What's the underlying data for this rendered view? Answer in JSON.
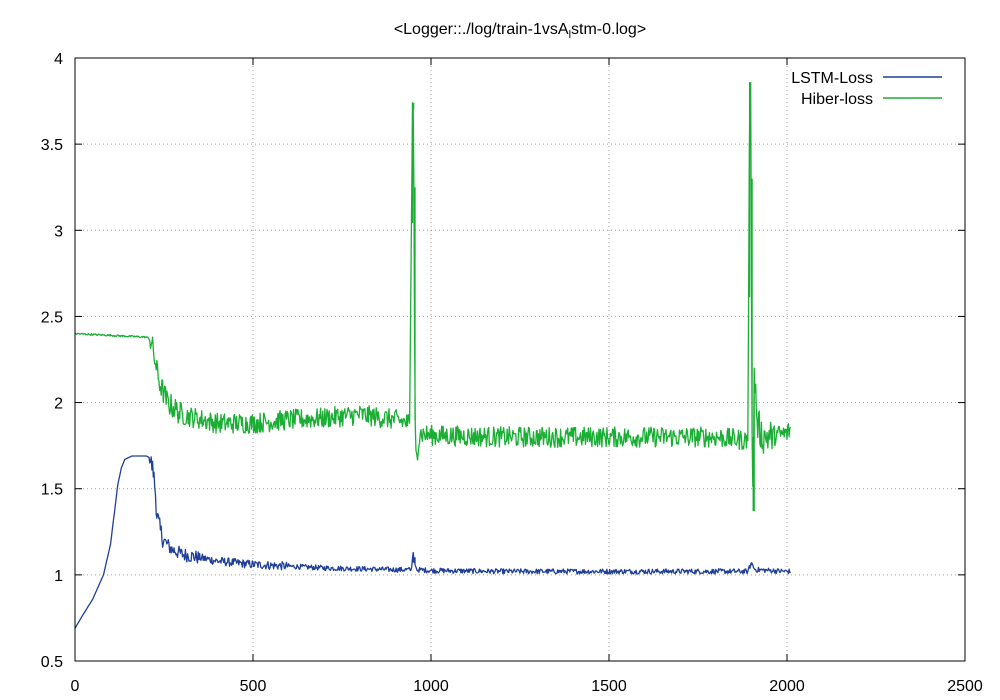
{
  "chart_data": {
    "type": "line",
    "title": "<Logger::./log/train-1vsA",
    "title_subscript": "l",
    "title_suffix": "stm-0.log>",
    "xlim": [
      0,
      2500
    ],
    "ylim": [
      0.5,
      4
    ],
    "xticks": [
      0,
      500,
      1000,
      1500,
      2000,
      2500
    ],
    "yticks": [
      0.5,
      1,
      1.5,
      2,
      2.5,
      3,
      3.5,
      4
    ],
    "xtick_labels": [
      "0",
      "500",
      "1000",
      "1500",
      "2000",
      "2500"
    ],
    "ytick_labels": [
      "0.5",
      "1",
      "1.5",
      "2",
      "2.5",
      "3",
      "3.5",
      "4"
    ],
    "grid": true,
    "legend_position": "top-right",
    "series": [
      {
        "name": "LSTM-Loss",
        "color": "#1f3f99",
        "points": [
          [
            0,
            0.69
          ],
          [
            20,
            0.76
          ],
          [
            50,
            0.86
          ],
          [
            80,
            1.0
          ],
          [
            100,
            1.18
          ],
          [
            110,
            1.35
          ],
          [
            120,
            1.52
          ],
          [
            130,
            1.62
          ],
          [
            140,
            1.67
          ],
          [
            160,
            1.69
          ],
          [
            180,
            1.69
          ],
          [
            200,
            1.69
          ],
          [
            210,
            1.68
          ],
          [
            220,
            1.6
          ],
          [
            225,
            1.5
          ],
          [
            230,
            1.35
          ],
          [
            240,
            1.25
          ],
          [
            250,
            1.2
          ],
          [
            270,
            1.15
          ],
          [
            300,
            1.12
          ],
          [
            400,
            1.08
          ],
          [
            500,
            1.06
          ],
          [
            600,
            1.05
          ],
          [
            700,
            1.04
          ],
          [
            800,
            1.035
          ],
          [
            900,
            1.03
          ],
          [
            945,
            1.03
          ],
          [
            950,
            1.13
          ],
          [
            955,
            1.06
          ],
          [
            960,
            1.03
          ],
          [
            1000,
            1.025
          ],
          [
            1200,
            1.02
          ],
          [
            1500,
            1.02
          ],
          [
            1800,
            1.02
          ],
          [
            1890,
            1.02
          ],
          [
            1900,
            1.07
          ],
          [
            1910,
            1.03
          ],
          [
            2000,
            1.02
          ],
          [
            2010,
            1.02
          ]
        ],
        "noise": [
          [
            0,
            210,
            0.0
          ],
          [
            210,
            250,
            0.06
          ],
          [
            250,
            350,
            0.04
          ],
          [
            350,
            600,
            0.025
          ],
          [
            600,
            2010,
            0.015
          ]
        ]
      },
      {
        "name": "Hiber-loss",
        "color": "#1aaf34",
        "points": [
          [
            0,
            2.4
          ],
          [
            100,
            2.39
          ],
          [
            200,
            2.38
          ],
          [
            210,
            2.37
          ],
          [
            220,
            2.3
          ],
          [
            230,
            2.18
          ],
          [
            240,
            2.1
          ],
          [
            260,
            2.0
          ],
          [
            300,
            1.93
          ],
          [
            400,
            1.88
          ],
          [
            500,
            1.88
          ],
          [
            600,
            1.9
          ],
          [
            700,
            1.91
          ],
          [
            800,
            1.93
          ],
          [
            900,
            1.9
          ],
          [
            940,
            1.88
          ],
          [
            948,
            3.74
          ],
          [
            951,
            3.7
          ],
          [
            955,
            1.9
          ],
          [
            960,
            1.7
          ],
          [
            970,
            1.82
          ],
          [
            1000,
            1.81
          ],
          [
            1200,
            1.8
          ],
          [
            1500,
            1.8
          ],
          [
            1800,
            1.8
          ],
          [
            1890,
            1.78
          ],
          [
            1895,
            3.86
          ],
          [
            1898,
            3.8
          ],
          [
            1902,
            1.8
          ],
          [
            1905,
            1.37
          ],
          [
            1908,
            2.2
          ],
          [
            1915,
            1.9
          ],
          [
            1930,
            1.8
          ],
          [
            2000,
            1.82
          ],
          [
            2010,
            1.85
          ]
        ],
        "noise": [
          [
            0,
            210,
            0.005
          ],
          [
            210,
            300,
            0.07
          ],
          [
            300,
            940,
            0.06
          ],
          [
            940,
            1890,
            0.06
          ],
          [
            1890,
            1960,
            0.1
          ],
          [
            1960,
            2010,
            0.06
          ]
        ]
      }
    ]
  }
}
